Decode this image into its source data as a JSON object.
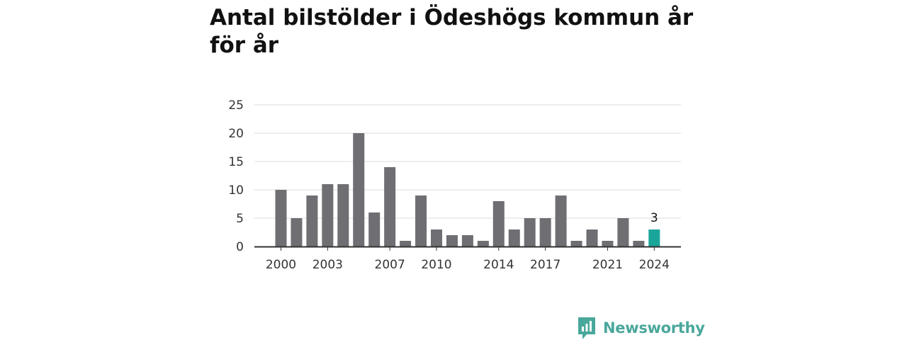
{
  "chart_data": {
    "type": "bar",
    "title": "Antal bilstölder i Ödeshögs kommun år för år",
    "x": [
      2000,
      2001,
      2002,
      2003,
      2004,
      2005,
      2006,
      2007,
      2008,
      2009,
      2010,
      2011,
      2012,
      2013,
      2014,
      2015,
      2016,
      2017,
      2018,
      2019,
      2020,
      2021,
      2022,
      2023,
      2024
    ],
    "values": [
      10,
      5,
      9,
      11,
      11,
      20,
      6,
      14,
      1,
      9,
      3,
      2,
      2,
      1,
      8,
      3,
      5,
      5,
      9,
      1,
      3,
      1,
      5,
      1,
      3
    ],
    "x_tick_labels": [
      "2000",
      "2003",
      "2007",
      "2010",
      "2014",
      "2017",
      "2021",
      "2024"
    ],
    "y_ticks": [
      0,
      5,
      10,
      15,
      20,
      25
    ],
    "ylim": [
      0,
      25
    ],
    "highlight": {
      "year": 2024,
      "label": "3"
    },
    "colors": {
      "bar": "#6e6e73",
      "highlight": "#1aa59a",
      "grid": "#dddddd",
      "axis": "#333333"
    },
    "grid": true,
    "legend": "none"
  },
  "branding": {
    "name": "Newsworthy",
    "icon": "newsworthy-logo-icon",
    "color": "#4aa79b"
  }
}
